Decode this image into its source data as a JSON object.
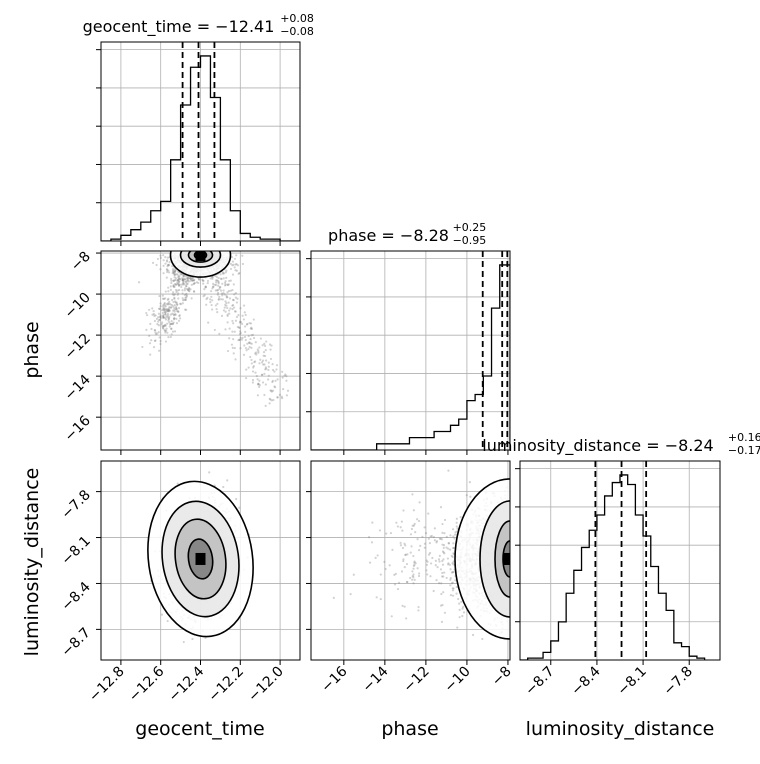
{
  "chart_data": {
    "type": "scatter",
    "subtype": "corner-plot",
    "parameters": [
      "geocent_time",
      "phase",
      "luminosity_distance"
    ],
    "titles": [
      {
        "param": "geocent_time",
        "name": "geocent_time",
        "median": "−12.41",
        "plus": "+0.08",
        "minus": "−0.08"
      },
      {
        "param": "phase",
        "name": "phase",
        "median": "−8.28",
        "plus": "+0.25",
        "minus": "−0.95"
      },
      {
        "param": "luminosity_distance",
        "name": "luminosity_distance",
        "median": "−8.24",
        "plus": "+0.16",
        "minus": "−0.17"
      }
    ],
    "ranges": {
      "geocent_time": [
        -12.9,
        -11.9
      ],
      "phase": [
        -17.6,
        -7.9
      ],
      "luminosity_distance": [
        -8.9,
        -7.6
      ]
    },
    "ticks": {
      "geocent_time": [
        -12.8,
        -12.6,
        -12.4,
        -12.2,
        -12.0
      ],
      "phase": [
        -16,
        -14,
        -12,
        -10,
        -8
      ],
      "luminosity_distance": [
        -8.7,
        -8.4,
        -8.1,
        -7.8
      ]
    },
    "tick_labels": {
      "geocent_time": [
        "−12.8",
        "−12.6",
        "−12.4",
        "−12.2",
        "−12.0"
      ],
      "phase": [
        "−16",
        "−14",
        "−12",
        "−10",
        "−8"
      ],
      "luminosity_distance": [
        "−8.7",
        "−8.4",
        "−8.1",
        "−7.8"
      ]
    },
    "quantile_lines": {
      "geocent_time": [
        -12.49,
        -12.41,
        -12.33
      ],
      "phase": [
        -9.23,
        -8.28,
        -8.03
      ],
      "luminosity_distance": [
        -8.41,
        -8.24,
        -8.08
      ]
    },
    "histograms": {
      "geocent_time": {
        "edges": [
          -12.9,
          -12.85,
          -12.8,
          -12.75,
          -12.7,
          -12.65,
          -12.6,
          -12.55,
          -12.5,
          -12.45,
          -12.4,
          -12.35,
          -12.3,
          -12.25,
          -12.2,
          -12.15,
          -12.1,
          -12.05,
          -12.0,
          -11.95,
          -11.9
        ],
        "counts": [
          0,
          1,
          3,
          6,
          10,
          16,
          21,
          43,
          72,
          92,
          98,
          76,
          43,
          16,
          4,
          2,
          1,
          1,
          0,
          0
        ]
      },
      "phase": {
        "edges": [
          -17.6,
          -17.2,
          -16.8,
          -16.4,
          -16.0,
          -15.6,
          -15.2,
          -14.8,
          -14.4,
          -14.0,
          -13.6,
          -13.2,
          -12.8,
          -12.4,
          -12.0,
          -11.6,
          -11.2,
          -10.8,
          -10.4,
          -10.0,
          -9.6,
          -9.2,
          -8.8,
          -8.4,
          -8.0,
          -7.9
        ],
        "counts": [
          0,
          0,
          0,
          0,
          0,
          0,
          0,
          0,
          1,
          1,
          1,
          1,
          2,
          2,
          2,
          3,
          3,
          4,
          5,
          8,
          9,
          12,
          23,
          30,
          30
        ]
      },
      "luminosity_distance": {
        "edges": [
          -8.9,
          -8.85,
          -8.8,
          -8.75,
          -8.7,
          -8.65,
          -8.6,
          -8.55,
          -8.5,
          -8.45,
          -8.4,
          -8.35,
          -8.3,
          -8.25,
          -8.2,
          -8.15,
          -8.1,
          -8.05,
          -8.0,
          -7.95,
          -7.9,
          -7.85,
          -7.8,
          -7.75,
          -7.7
        ],
        "counts": [
          0,
          1,
          1,
          4,
          10,
          20,
          35,
          47,
          59,
          68,
          76,
          86,
          93,
          97,
          92,
          76,
          65,
          49,
          35,
          26,
          9,
          7,
          2,
          1
        ]
      }
    },
    "density_centers": {
      "geocent_time_vs_phase": {
        "x": -12.4,
        "y": -8.1
      },
      "geocent_time_vs_luminosity_distance": {
        "x": -12.4,
        "y": -8.24
      },
      "phase_vs_luminosity_distance": {
        "x": -8.0,
        "y": -8.24
      }
    },
    "grid": true
  }
}
